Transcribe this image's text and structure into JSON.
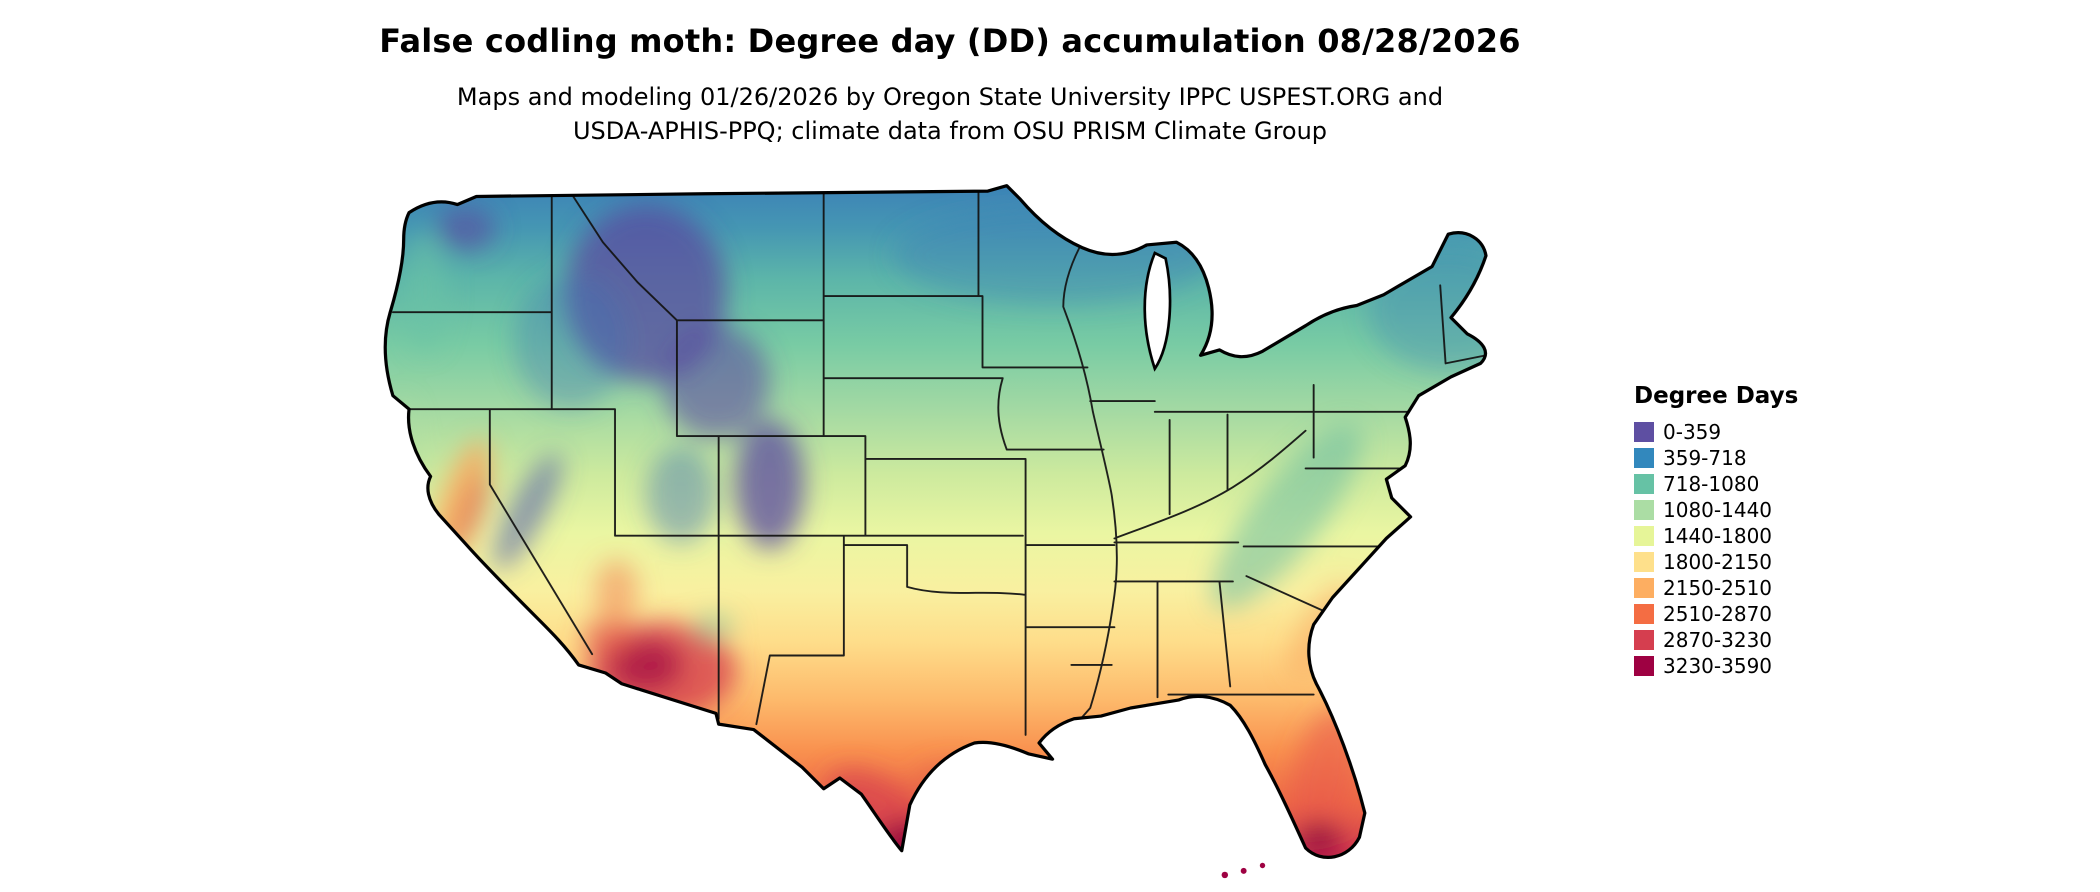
{
  "header": {
    "title": "False codling moth: Degree day (DD) accumulation 08/28/2026",
    "subtitle_line1": "Maps and modeling 01/26/2026 by Oregon State University IPPC USPEST.ORG and",
    "subtitle_line2": "USDA-APHIS-PPQ; climate data from OSU PRISM Climate Group"
  },
  "map": {
    "type": "choropleth",
    "region": "contiguous-united-states",
    "outline_color": "#000000"
  },
  "legend": {
    "title": "Degree Days",
    "items": [
      {
        "label": "0-359",
        "color": "#5e4fa2"
      },
      {
        "label": "359-718",
        "color": "#3288bd"
      },
      {
        "label": "718-1080",
        "color": "#66c2a5"
      },
      {
        "label": "1080-1440",
        "color": "#abdda4"
      },
      {
        "label": "1440-1800",
        "color": "#e6f598"
      },
      {
        "label": "1800-2150",
        "color": "#fee08b"
      },
      {
        "label": "2150-2510",
        "color": "#fdae61"
      },
      {
        "label": "2510-2870",
        "color": "#f46d43"
      },
      {
        "label": "2870-3230",
        "color": "#d53e4f"
      },
      {
        "label": "3230-3590",
        "color": "#9e0142"
      }
    ]
  }
}
